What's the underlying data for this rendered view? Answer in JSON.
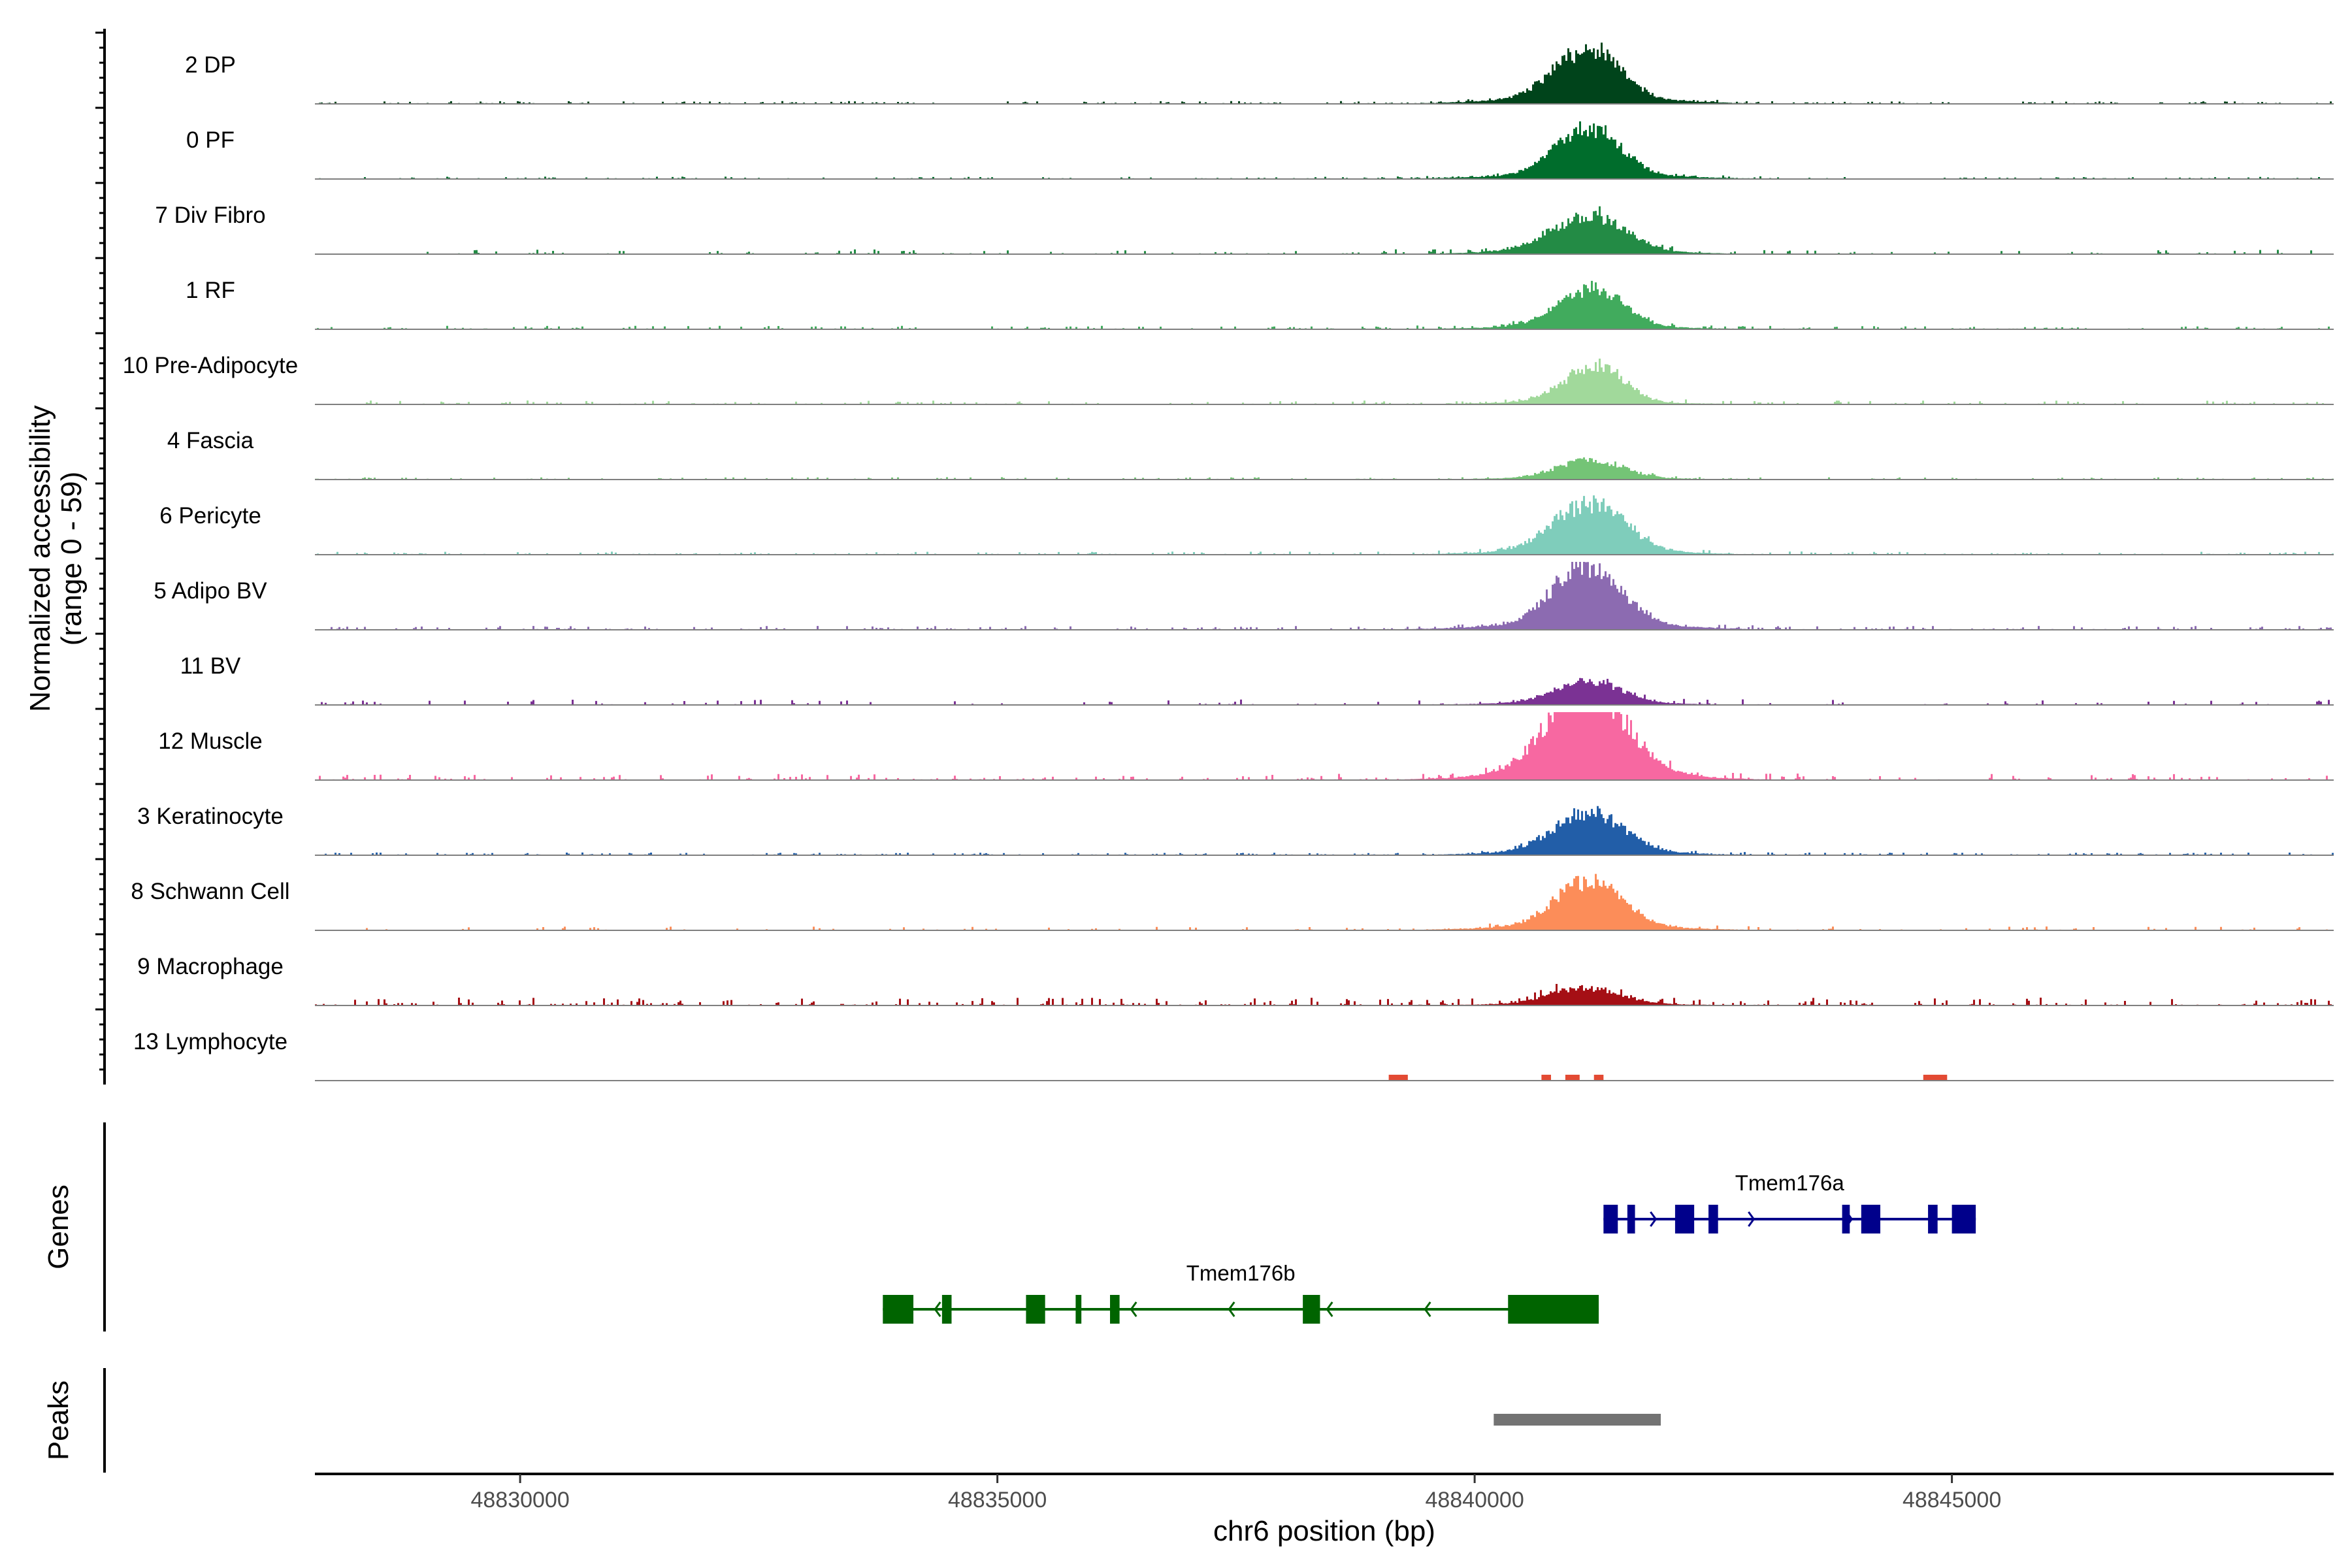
{
  "chart_data": {
    "type": "area",
    "title": "",
    "y_axis_label_line1": "Normalized accessibility",
    "y_axis_label_line2": "(range 0 - 59)",
    "ylim": [
      0,
      59
    ],
    "xlabel": "chr6 position (bp)",
    "xlim": [
      48827850,
      48849000
    ],
    "x_ticks": [
      48830000,
      48835000,
      48840000,
      48845000
    ],
    "x_tick_labels": [
      "48830000",
      "48835000",
      "48840000",
      "48845000"
    ],
    "tracks": [
      {
        "name": "2 DP",
        "color": "#00441B",
        "peaks": [
          [
            48841.0,
            48,
            90
          ],
          [
            48841.35,
            50,
            85
          ]
        ],
        "bg": 0.07,
        "bg_density": 0.55,
        "seed": 11
      },
      {
        "name": "0 PF",
        "color": "#006D2C",
        "peaks": [
          [
            48841.0,
            42,
            85
          ],
          [
            48841.35,
            50,
            85
          ]
        ],
        "bg": 0.06,
        "bg_density": 0.5,
        "seed": 23
      },
      {
        "name": "7 Div Fibro",
        "color": "#238B45",
        "peaks": [
          [
            48841.0,
            30,
            110
          ],
          [
            48841.35,
            36,
            100
          ]
        ],
        "bg": 0.12,
        "bg_density": 0.25,
        "seed": 37
      },
      {
        "name": "1 RF",
        "color": "#41AB5D",
        "peaks": [
          [
            48841.0,
            28,
            90
          ],
          [
            48841.35,
            45,
            85
          ]
        ],
        "bg": 0.09,
        "bg_density": 0.4,
        "seed": 41
      },
      {
        "name": "10 Pre-Adipocyte",
        "color": "#A1D99B",
        "peaks": [
          [
            48841.0,
            22,
            80
          ],
          [
            48841.35,
            50,
            80
          ]
        ],
        "bg": 0.1,
        "bg_density": 0.35,
        "seed": 53
      },
      {
        "name": "4 Fascia",
        "color": "#74C476",
        "peaks": [
          [
            48841.0,
            14,
            90
          ],
          [
            48841.35,
            20,
            90
          ]
        ],
        "bg": 0.06,
        "bg_density": 0.45,
        "seed": 67
      },
      {
        "name": "6 Pericyte",
        "color": "#7FCDBB",
        "peaks": [
          [
            48841.0,
            38,
            100
          ],
          [
            48841.35,
            50,
            100
          ]
        ],
        "bg": 0.08,
        "bg_density": 0.45,
        "seed": 71
      },
      {
        "name": "5 Adipo BV",
        "color": "#8C6BB1",
        "peaks": [
          [
            48841.0,
            58,
            90
          ],
          [
            48841.35,
            55,
            90
          ]
        ],
        "bg": 0.1,
        "bg_density": 0.5,
        "seed": 83
      },
      {
        "name": "11 BV",
        "color": "#7B3294",
        "peaks": [
          [
            48841.0,
            20,
            90
          ],
          [
            48841.35,
            22,
            90
          ]
        ],
        "bg": 0.14,
        "bg_density": 0.2,
        "seed": 97
      },
      {
        "name": "12 Muscle",
        "color": "#F768A1",
        "peaks": [
          [
            48841.0,
            78,
            110
          ],
          [
            48841.35,
            78,
            110
          ]
        ],
        "bg": 0.16,
        "bg_density": 0.35,
        "seed": 101
      },
      {
        "name": "3 Keratinocyte",
        "color": "#225EA8",
        "peaks": [
          [
            48841.0,
            32,
            100
          ],
          [
            48841.35,
            40,
            100
          ]
        ],
        "bg": 0.07,
        "bg_density": 0.5,
        "seed": 113
      },
      {
        "name": "8 Schwann Cell",
        "color": "#FC8D59",
        "peaks": [
          [
            48841.0,
            40,
            90
          ],
          [
            48841.35,
            48,
            90
          ]
        ],
        "bg": 0.1,
        "bg_density": 0.25,
        "seed": 127
      },
      {
        "name": "9 Macrophage",
        "color": "#A50F15",
        "peaks": [
          [
            48841.0,
            18,
            90
          ],
          [
            48841.35,
            12,
            90
          ]
        ],
        "bg": 0.2,
        "bg_density": 0.45,
        "seed": 131
      },
      {
        "name": "13 Lymphocyte",
        "color": "#E34A33",
        "peaks": [],
        "bg": 0.0,
        "bg_density": 0.0,
        "seed": 139
      }
    ],
    "genes_label": "Genes",
    "genes": [
      {
        "name": "Tmem176a",
        "color": "#00008B",
        "strand": "+",
        "start": 48841.35,
        "end": 48845.25,
        "exons": [
          [
            48841.35,
            48841.5
          ],
          [
            48841.6,
            48841.68
          ],
          [
            48842.1,
            48842.3
          ],
          [
            48842.45,
            48842.55
          ],
          [
            48843.85,
            48843.93
          ],
          [
            48844.05,
            48844.25
          ],
          [
            48844.75,
            48844.85
          ],
          [
            48845.0,
            48845.25
          ]
        ]
      },
      {
        "name": "Tmem176b",
        "color": "#006400",
        "strand": "-",
        "start": 48833.8,
        "end": 48841.3,
        "exons": [
          [
            48833.8,
            48834.12
          ],
          [
            48834.42,
            48834.52
          ],
          [
            48835.3,
            48835.5
          ],
          [
            48835.82,
            48835.88
          ],
          [
            48836.18,
            48836.28
          ],
          [
            48838.2,
            48838.38
          ],
          [
            48840.35,
            48841.3
          ]
        ]
      }
    ],
    "lymphocyte_blocks": [
      [
        48839.1,
        48839.3
      ],
      [
        48840.7,
        48840.8
      ],
      [
        48840.95,
        48841.1
      ],
      [
        48841.25,
        48841.35
      ],
      [
        48844.7,
        48844.95
      ]
    ],
    "peaks_label": "Peaks",
    "peak_regions": [
      [
        48840.2,
        48841.95
      ]
    ],
    "peak_color": "#737373",
    "axis_color": "#000000",
    "baseline_color": "#7F7F7F"
  }
}
